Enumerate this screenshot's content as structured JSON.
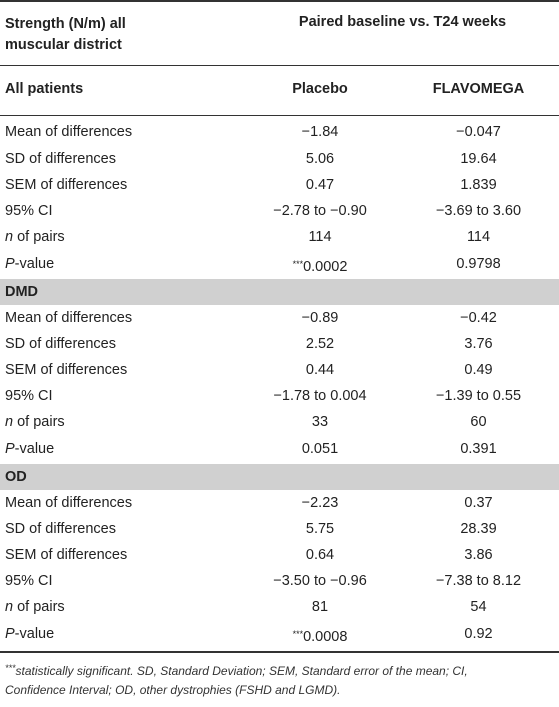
{
  "header": {
    "strength_label_line1": "Strength (N/m) all",
    "strength_label_line2": "muscular district",
    "paired_label": "Paired baseline vs. T24 weeks",
    "group_label": "All patients",
    "col_placebo": "Placebo",
    "col_flavomega": "FLAVOMEGA"
  },
  "labels": {
    "mean": "Mean of differences",
    "sd": "SD of differences",
    "sem": "SEM of differences",
    "ci": "95% CI",
    "n_italic": "n",
    "n_rest": " of pairs",
    "p_italic": "P",
    "p_rest": "-value"
  },
  "sections": {
    "dmd": "DMD",
    "od": "OD"
  },
  "all": {
    "mean": [
      "−1.84",
      "−0.047"
    ],
    "sd": [
      "5.06",
      "19.64"
    ],
    "sem": [
      "0.47",
      "1.839"
    ],
    "ci": [
      "−2.78 to −0.90",
      "−3.69 to 3.60"
    ],
    "n": [
      "114",
      "114"
    ],
    "p_stars": "***",
    "p": [
      "0.0002",
      "0.9798"
    ]
  },
  "dmd": {
    "mean": [
      "−0.89",
      "−0.42"
    ],
    "sd": [
      "2.52",
      "3.76"
    ],
    "sem": [
      "0.44",
      "0.49"
    ],
    "ci": [
      "−1.78 to 0.004",
      "−1.39 to 0.55"
    ],
    "n": [
      "33",
      "60"
    ],
    "p": [
      "0.051",
      "0.391"
    ]
  },
  "od": {
    "mean": [
      "−2.23",
      "0.37"
    ],
    "sd": [
      "5.75",
      "28.39"
    ],
    "sem": [
      "0.64",
      "3.86"
    ],
    "ci": [
      "−3.50 to −0.96",
      "−7.38 to 8.12"
    ],
    "n": [
      "81",
      "54"
    ],
    "p_stars": "***",
    "p": [
      "0.0008",
      "0.92"
    ]
  },
  "footnote": {
    "stars": "***",
    "text_line1": "statistically significant. SD, Standard Deviation; SEM, Standard error of the mean; CI,",
    "text_line2": "Confidence Interval; OD, other dystrophies (FSHD and LGMD)."
  }
}
